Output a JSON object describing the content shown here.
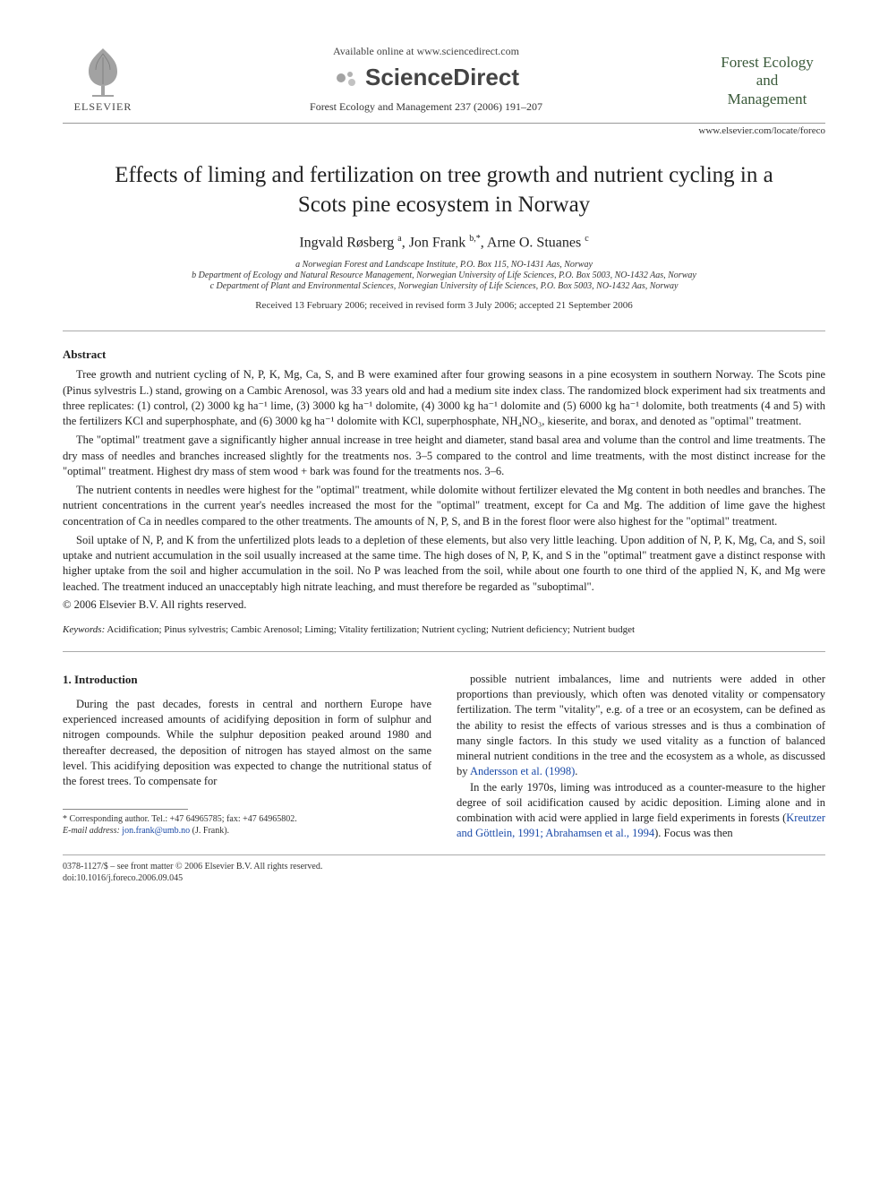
{
  "header": {
    "available_online": "Available online at www.sciencedirect.com",
    "sciencedirect_label": "ScienceDirect",
    "elsevier_label": "ELSEVIER",
    "journal_logo_line1": "Forest Ecology",
    "journal_logo_line2": "and",
    "journal_logo_line3": "Management",
    "journal_ref": "Forest Ecology and Management 237 (2006) 191–207",
    "journal_url": "www.elsevier.com/locate/foreco"
  },
  "title": "Effects of liming and fertilization on tree growth and nutrient cycling in a Scots pine ecosystem in Norway",
  "authors_html": "Ingvald Røsberg <sup>a</sup>, Jon Frank <sup>b,*</sup>, Arne O. Stuanes <sup>c</sup>",
  "affiliations": [
    "a Norwegian Forest and Landscape Institute, P.O. Box 115, NO-1431 Aas, Norway",
    "b Department of Ecology and Natural Resource Management, Norwegian University of Life Sciences, P.O. Box 5003, NO-1432 Aas, Norway",
    "c Department of Plant and Environmental Sciences, Norwegian University of Life Sciences, P.O. Box 5003, NO-1432 Aas, Norway"
  ],
  "dates": "Received 13 February 2006; received in revised form 3 July 2006; accepted 21 September 2006",
  "abstract_label": "Abstract",
  "abstract_paragraphs": [
    "Tree growth and nutrient cycling of N, P, K, Mg, Ca, S, and B were examined after four growing seasons in a pine ecosystem in southern Norway. The Scots pine (Pinus sylvestris L.) stand, growing on a Cambic Arenosol, was 33 years old and had a medium site index class. The randomized block experiment had six treatments and three replicates: (1) control, (2) 3000 kg ha⁻¹ lime, (3) 3000 kg ha⁻¹ dolomite, (4) 3000 kg ha⁻¹ dolomite and (5) 6000 kg ha⁻¹ dolomite, both treatments (4 and 5) with the fertilizers KCl and superphosphate, and (6) 3000 kg ha⁻¹ dolomite with KCl, superphosphate, NH₄NO₃, kieserite, and borax, and denoted as \"optimal\" treatment.",
    "The \"optimal\" treatment gave a significantly higher annual increase in tree height and diameter, stand basal area and volume than the control and lime treatments. The dry mass of needles and branches increased slightly for the treatments nos. 3–5 compared to the control and lime treatments, with the most distinct increase for the \"optimal\" treatment. Highest dry mass of stem wood + bark was found for the treatments nos. 3–6.",
    "The nutrient contents in needles were highest for the \"optimal\" treatment, while dolomite without fertilizer elevated the Mg content in both needles and branches. The nutrient concentrations in the current year's needles increased the most for the \"optimal\" treatment, except for Ca and Mg. The addition of lime gave the highest concentration of Ca in needles compared to the other treatments. The amounts of N, P, S, and B in the forest floor were also highest for the \"optimal\" treatment.",
    "Soil uptake of N, P, and K from the unfertilized plots leads to a depletion of these elements, but also very little leaching. Upon addition of N, P, K, Mg, Ca, and S, soil uptake and nutrient accumulation in the soil usually increased at the same time. The high doses of N, P, K, and S in the \"optimal\" treatment gave a distinct response with higher uptake from the soil and higher accumulation in the soil. No P was leached from the soil, while about one fourth to one third of the applied N, K, and Mg were leached. The treatment induced an unacceptably high nitrate leaching, and must therefore be regarded as \"suboptimal\"."
  ],
  "copyright": "© 2006 Elsevier B.V. All rights reserved.",
  "keywords_label": "Keywords:",
  "keywords": "Acidification; Pinus sylvestris; Cambic Arenosol; Liming; Vitality fertilization; Nutrient cycling; Nutrient deficiency; Nutrient budget",
  "section_1_head": "1. Introduction",
  "col1_para": "During the past decades, forests in central and northern Europe have experienced increased amounts of acidifying deposition in form of sulphur and nitrogen compounds. While the sulphur deposition peaked around 1980 and thereafter decreased, the deposition of nitrogen has stayed almost on the same level. This acidifying deposition was expected to change the nutritional status of the forest trees. To compensate for",
  "col2_para1": "possible nutrient imbalances, lime and nutrients were added in other proportions than previously, which often was denoted vitality or compensatory fertilization. The term \"vitality\", e.g. of a tree or an ecosystem, can be defined as the ability to resist the effects of various stresses and is thus a combination of many single factors. In this study we used vitality as a function of balanced mineral nutrient conditions in the tree and the ecosystem as a whole, as discussed by ",
  "col2_link1": "Andersson et al. (1998)",
  "col2_para1_tail": ".",
  "col2_para2_pre": "In the early 1970s, liming was introduced as a counter-measure to the higher degree of soil acidification caused by acidic deposition. Liming alone and in combination with acid were applied in large field experiments in forests (",
  "col2_link2": "Kreutzer and Göttlein, 1991; Abrahamsen et al., 1994",
  "col2_para2_post": "). Focus was then",
  "footnote_corr": "* Corresponding author. Tel.: +47 64965785; fax: +47 64965802.",
  "footnote_email_label": "E-mail address:",
  "footnote_email": "jon.frank@umb.no",
  "footnote_email_suffix": "(J. Frank).",
  "bottom_issn": "0378-1127/$ – see front matter © 2006 Elsevier B.V. All rights reserved.",
  "bottom_doi": "doi:10.1016/j.foreco.2006.09.045"
}
